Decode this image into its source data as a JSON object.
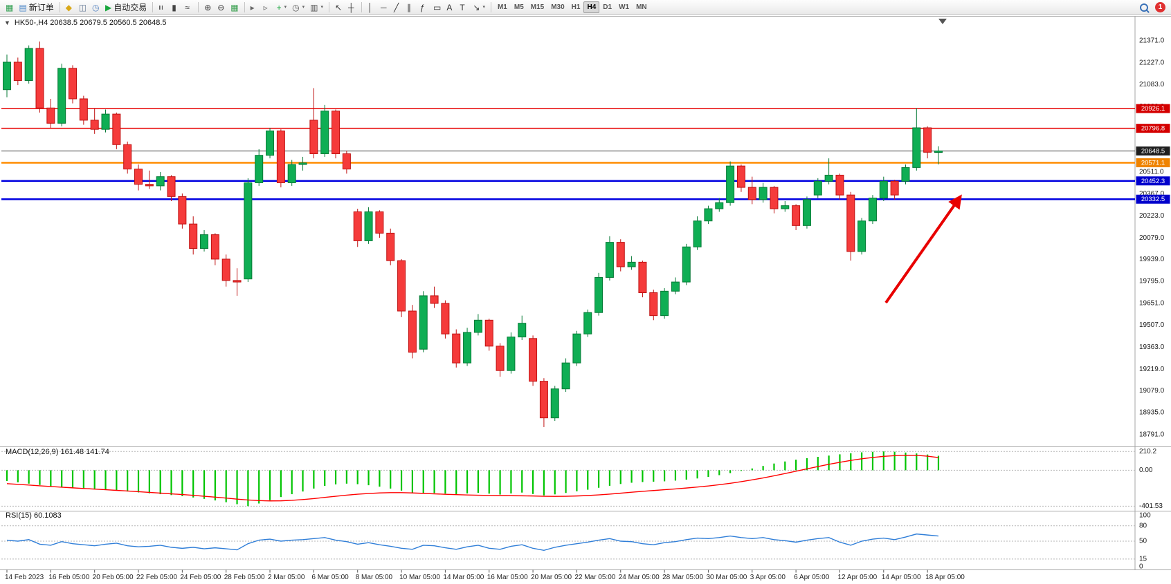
{
  "toolbar": {
    "notification_count": "1",
    "items": [
      {
        "type": "icon",
        "name": "chart-window-icon",
        "glyph": "▦",
        "color": "#2f9e4f"
      },
      {
        "type": "button",
        "name": "new-order-button",
        "label": "新订单",
        "glyph": "▤",
        "color": "#4a86c8"
      },
      {
        "type": "sep"
      },
      {
        "type": "icon",
        "name": "metaeditor-icon",
        "glyph": "◆",
        "color": "#d9a818"
      },
      {
        "type": "icon",
        "name": "publisher-icon",
        "glyph": "◫",
        "color": "#6b7f99"
      },
      {
        "type": "icon",
        "name": "history-center-icon",
        "glyph": "◷",
        "color": "#4f7fbf"
      },
      {
        "type": "button",
        "name": "autotrading-button",
        "label": "自动交易",
        "glyph": "▶",
        "color": "#18a63c"
      },
      {
        "type": "sep"
      },
      {
        "type": "icon",
        "name": "bar-chart-icon",
        "glyph": "≡",
        "color": "#444444",
        "rot": 90
      },
      {
        "type": "icon",
        "name": "candlestick-chart-icon",
        "glyph": "▮",
        "color": "#444444"
      },
      {
        "type": "icon",
        "name": "line-chart-icon",
        "glyph": "≈",
        "color": "#444444"
      },
      {
        "type": "sep"
      },
      {
        "type": "icon",
        "name": "zoom-in-icon",
        "glyph": "⊕",
        "color": "#333333"
      },
      {
        "type": "icon",
        "name": "zoom-out-icon",
        "glyph": "⊖",
        "color": "#333333"
      },
      {
        "type": "icon",
        "name": "tile-windows-icon",
        "glyph": "▦",
        "color": "#3aa050"
      },
      {
        "type": "sep"
      },
      {
        "type": "icon",
        "name": "autoscroll-icon",
        "glyph": "▸",
        "color": "#666666"
      },
      {
        "type": "icon",
        "name": "chart-shift-icon",
        "glyph": "▹",
        "color": "#666666"
      },
      {
        "type": "icon",
        "name": "add-indicator-icon",
        "glyph": "+",
        "color": "#18a63c",
        "caret": true
      },
      {
        "type": "icon",
        "name": "period-icon",
        "glyph": "◷",
        "color": "#555555",
        "caret": true
      },
      {
        "type": "icon",
        "name": "template-icon",
        "glyph": "▥",
        "color": "#555555",
        "caret": true
      },
      {
        "type": "sep"
      },
      {
        "type": "icon",
        "name": "cursor-icon",
        "glyph": "↖",
        "color": "#333333"
      },
      {
        "type": "icon",
        "name": "crosshair-icon",
        "glyph": "┼",
        "color": "#333333"
      },
      {
        "type": "sep"
      },
      {
        "type": "icon",
        "name": "vertical-line-icon",
        "glyph": "│",
        "color": "#333333"
      },
      {
        "type": "icon",
        "name": "horizontal-line-icon",
        "glyph": "─",
        "color": "#333333"
      },
      {
        "type": "icon",
        "name": "trendline-icon",
        "glyph": "╱",
        "color": "#333333"
      },
      {
        "type": "icon",
        "name": "channel-icon",
        "glyph": "∥",
        "color": "#333333"
      },
      {
        "type": "icon",
        "name": "fibonacci-icon",
        "glyph": "ƒ",
        "color": "#333333"
      },
      {
        "type": "icon",
        "name": "shapes-icon",
        "glyph": "▭",
        "color": "#333333"
      },
      {
        "type": "icon",
        "name": "text-icon",
        "glyph": "A",
        "color": "#333333"
      },
      {
        "type": "icon",
        "name": "label-icon",
        "glyph": "T",
        "color": "#333333"
      },
      {
        "type": "icon",
        "name": "arrows-icon",
        "glyph": "↘",
        "color": "#333333",
        "caret": true
      },
      {
        "type": "sep"
      },
      {
        "type": "tf",
        "label": "M1"
      },
      {
        "type": "tf",
        "label": "M5"
      },
      {
        "type": "tf",
        "label": "M15"
      },
      {
        "type": "tf",
        "label": "M30"
      },
      {
        "type": "tf",
        "label": "H1"
      },
      {
        "type": "tf",
        "label": "H4",
        "active": true
      },
      {
        "type": "tf",
        "label": "D1"
      },
      {
        "type": "tf",
        "label": "W1"
      },
      {
        "type": "tf",
        "label": "MN"
      }
    ]
  },
  "chart_data": {
    "type": "candlestick",
    "symbol": "HK50-",
    "timeframe": "H4",
    "header": "HK50-,H4   20638.5 20679.5 20560.5 20648.5",
    "last_bar": {
      "open": 20638.5,
      "high": 20679.5,
      "low": 20560.5,
      "close": 20648.5
    },
    "colors": {
      "up": "#0fae54",
      "up_border": "#067a36",
      "down": "#f53b3b",
      "down_border": "#bf1111",
      "macd_hist": "#00c400",
      "macd_signal": "#ff0000",
      "rsi_line": "#2f7ed8",
      "axis_text": "#1a1a1a"
    },
    "y_range": [
      18740,
      21420
    ],
    "y_ticks": [
      21371.0,
      21227.0,
      21083.0,
      20939.0,
      20795.0,
      20651.0,
      20511.0,
      20367.0,
      20223.0,
      20079.0,
      19939.0,
      19795.0,
      19651.0,
      19507.0,
      19363.0,
      19219.0,
      19079.0,
      18935.0,
      18791.0
    ],
    "hlines": [
      {
        "price": 20926.1,
        "color": "#e60000",
        "badge_color": "#d40000",
        "width": 1.5
      },
      {
        "price": 20796.8,
        "color": "#e60000",
        "badge_color": "#d40000",
        "width": 1.5
      },
      {
        "price": 20648.5,
        "color": "#3c3c3c",
        "badge_color": "#1f1f1f",
        "width": 1,
        "is_current_price": true
      },
      {
        "price": 20571.1,
        "color": "#ff8c00",
        "badge_color": "#ef8300",
        "width": 2.5
      },
      {
        "price": 20452.3,
        "color": "#0000e0",
        "badge_color": "#0000cc",
        "width": 2.5
      },
      {
        "price": 20332.5,
        "color": "#0000e0",
        "badge_color": "#0000cc",
        "width": 2.5
      }
    ],
    "x_label_every": 4,
    "x_labels": [
      "14 Feb 2023",
      "16 Feb 05:00",
      "20 Feb 05:00",
      "22 Feb 05:00",
      "24 Feb 05:00",
      "28 Feb 05:00",
      "2 Mar 05:00",
      "6 Mar 05:00",
      "8 Mar 05:00",
      "10 Mar 05:00",
      "14 Mar 05:00",
      "16 Mar 05:00",
      "20 Mar 05:00",
      "22 Mar 05:00",
      "24 Mar 05:00",
      "28 Mar 05:00",
      "30 Mar 05:00",
      "3 Apr 05:00",
      "6 Apr 05:00",
      "12 Apr 05:00",
      "14 Apr 05:00",
      "18 Apr 05:00"
    ],
    "candles": [
      [
        21050,
        21280,
        21000,
        21230
      ],
      [
        21230,
        21260,
        21080,
        21110
      ],
      [
        21110,
        21340,
        21090,
        21320
      ],
      [
        21320,
        21365,
        20900,
        20930
      ],
      [
        20930,
        20990,
        20800,
        20830
      ],
      [
        20830,
        21220,
        20810,
        21190
      ],
      [
        21190,
        21210,
        20960,
        20990
      ],
      [
        20990,
        21010,
        20820,
        20850
      ],
      [
        20850,
        20930,
        20760,
        20790
      ],
      [
        20790,
        20920,
        20770,
        20890
      ],
      [
        20890,
        20900,
        20660,
        20690
      ],
      [
        20690,
        20710,
        20500,
        20530
      ],
      [
        20530,
        20560,
        20390,
        20430
      ],
      [
        20430,
        20520,
        20400,
        20420
      ],
      [
        20420,
        20510,
        20390,
        20480
      ],
      [
        20480,
        20490,
        20320,
        20350
      ],
      [
        20350,
        20370,
        20140,
        20170
      ],
      [
        20170,
        20220,
        19970,
        20010
      ],
      [
        20010,
        20130,
        19990,
        20100
      ],
      [
        20100,
        20110,
        19900,
        19940
      ],
      [
        19940,
        19970,
        19760,
        19800
      ],
      [
        19800,
        19880,
        19700,
        19790
      ],
      [
        19810,
        20470,
        19790,
        20440
      ],
      [
        20440,
        20660,
        20420,
        20620
      ],
      [
        20620,
        20800,
        20600,
        20780
      ],
      [
        20780,
        20790,
        20410,
        20440
      ],
      [
        20440,
        20590,
        20420,
        20560
      ],
      [
        20560,
        20610,
        20520,
        20570
      ],
      [
        20850,
        21060,
        20600,
        20630
      ],
      [
        20630,
        20950,
        20610,
        20910
      ],
      [
        20910,
        20920,
        20600,
        20630
      ],
      [
        20630,
        20650,
        20500,
        20530
      ],
      [
        20250,
        20270,
        20020,
        20060
      ],
      [
        20060,
        20280,
        20040,
        20250
      ],
      [
        20250,
        20260,
        20080,
        20110
      ],
      [
        20110,
        20140,
        19900,
        19930
      ],
      [
        19930,
        19940,
        19560,
        19600
      ],
      [
        19600,
        19640,
        19290,
        19330
      ],
      [
        19350,
        19730,
        19330,
        19700
      ],
      [
        19700,
        19760,
        19620,
        19650
      ],
      [
        19650,
        19670,
        19420,
        19450
      ],
      [
        19450,
        19480,
        19230,
        19260
      ],
      [
        19260,
        19490,
        19240,
        19460
      ],
      [
        19460,
        19580,
        19440,
        19540
      ],
      [
        19540,
        19550,
        19340,
        19370
      ],
      [
        19370,
        19390,
        19170,
        19210
      ],
      [
        19210,
        19460,
        19190,
        19430
      ],
      [
        19430,
        19570,
        19410,
        19520
      ],
      [
        19420,
        19440,
        19110,
        19140
      ],
      [
        19140,
        19160,
        18840,
        18900
      ],
      [
        18900,
        19110,
        18880,
        19090
      ],
      [
        19090,
        19290,
        19070,
        19260
      ],
      [
        19260,
        19470,
        19240,
        19450
      ],
      [
        19450,
        19610,
        19430,
        19590
      ],
      [
        19590,
        19850,
        19570,
        19820
      ],
      [
        19820,
        20090,
        19800,
        20050
      ],
      [
        20050,
        20070,
        19860,
        19890
      ],
      [
        19890,
        19960,
        19870,
        19920
      ],
      [
        19920,
        19930,
        19690,
        19720
      ],
      [
        19720,
        19740,
        19540,
        19570
      ],
      [
        19570,
        19750,
        19550,
        19730
      ],
      [
        19730,
        19820,
        19710,
        19790
      ],
      [
        19790,
        20040,
        19770,
        20020
      ],
      [
        20020,
        20220,
        20000,
        20190
      ],
      [
        20190,
        20290,
        20170,
        20270
      ],
      [
        20270,
        20340,
        20250,
        20310
      ],
      [
        20310,
        20580,
        20290,
        20550
      ],
      [
        20550,
        20560,
        20380,
        20410
      ],
      [
        20410,
        20480,
        20300,
        20330
      ],
      [
        20330,
        20440,
        20310,
        20410
      ],
      [
        20410,
        20420,
        20240,
        20270
      ],
      [
        20270,
        20320,
        20250,
        20290
      ],
      [
        20290,
        20300,
        20130,
        20160
      ],
      [
        20160,
        20350,
        20140,
        20330
      ],
      [
        20360,
        20470,
        20340,
        20450
      ],
      [
        20450,
        20600,
        20430,
        20490
      ],
      [
        20490,
        20500,
        20330,
        20360
      ],
      [
        20360,
        20380,
        19930,
        19990
      ],
      [
        19990,
        20210,
        19970,
        20190
      ],
      [
        20190,
        20360,
        20170,
        20340
      ],
      [
        20340,
        20480,
        20320,
        20450
      ],
      [
        20450,
        20460,
        20330,
        20360
      ],
      [
        20450,
        20560,
        20430,
        20540
      ],
      [
        20540,
        20930,
        20520,
        20800
      ],
      [
        20800,
        20810,
        20600,
        20640
      ],
      [
        20638.5,
        20679.5,
        20560.5,
        20648.5
      ]
    ],
    "macd": {
      "label": "MACD(12,26,9) 161.48 141.74",
      "scale_labels": [
        "210.2",
        "0.00",
        "-401.53"
      ],
      "scale_values": [
        210.2,
        0,
        -401.53
      ],
      "range": [
        -430,
        235
      ],
      "hist": [
        -120,
        -135,
        -150,
        -165,
        -180,
        -190,
        -200,
        -210,
        -215,
        -220,
        -228,
        -238,
        -248,
        -258,
        -268,
        -278,
        -290,
        -305,
        -320,
        -338,
        -358,
        -380,
        -401.53,
        -372,
        -335,
        -300,
        -268,
        -238,
        -205,
        -175,
        -158,
        -150,
        -156,
        -168,
        -184,
        -205,
        -228,
        -252,
        -262,
        -256,
        -262,
        -270,
        -260,
        -252,
        -262,
        -272,
        -260,
        -250,
        -266,
        -282,
        -270,
        -254,
        -236,
        -218,
        -196,
        -174,
        -154,
        -140,
        -132,
        -128,
        -124,
        -116,
        -105,
        -92,
        -75,
        -55,
        -32,
        -8,
        20,
        48,
        75,
        98,
        118,
        135,
        150,
        164,
        178,
        190,
        200,
        206,
        210.2,
        207,
        198,
        188,
        176,
        161.48
      ],
      "signal": [
        -150,
        -158,
        -166,
        -174,
        -182,
        -190,
        -197,
        -204,
        -211,
        -218,
        -225,
        -232,
        -240,
        -248,
        -256,
        -264,
        -272,
        -281,
        -291,
        -301,
        -312,
        -323,
        -333,
        -340,
        -343,
        -342,
        -337,
        -328,
        -317,
        -304,
        -291,
        -279,
        -268,
        -260,
        -254,
        -251,
        -251,
        -254,
        -259,
        -264,
        -269,
        -273,
        -277,
        -280,
        -282,
        -284,
        -285,
        -286,
        -288,
        -291,
        -292,
        -291,
        -288,
        -283,
        -276,
        -267,
        -257,
        -246,
        -236,
        -227,
        -218,
        -209,
        -199,
        -188,
        -176,
        -162,
        -146,
        -128,
        -108,
        -86,
        -62,
        -37,
        -11,
        15,
        41,
        66,
        89,
        110,
        128,
        143,
        155,
        163,
        168,
        167,
        157,
        141.74
      ]
    },
    "rsi": {
      "label": "RSI(15) 60.1083",
      "levels": [
        100,
        80,
        50,
        15,
        0
      ],
      "dotted_levels": [
        80,
        50,
        15
      ],
      "range": [
        0,
        100
      ],
      "values": [
        52,
        50,
        53,
        44,
        42,
        49,
        45,
        43,
        41,
        44,
        46,
        41,
        39,
        40,
        42,
        38,
        36,
        38,
        35,
        37,
        35,
        33,
        45,
        52,
        54,
        50,
        52,
        53,
        55,
        57,
        52,
        49,
        44,
        47,
        43,
        40,
        36,
        34,
        42,
        41,
        37,
        34,
        39,
        42,
        36,
        34,
        40,
        43,
        36,
        32,
        38,
        42,
        45,
        48,
        52,
        55,
        50,
        49,
        45,
        43,
        47,
        49,
        53,
        56,
        55,
        57,
        60,
        57,
        55,
        57,
        53,
        51,
        48,
        52,
        55,
        57,
        48,
        42,
        50,
        54,
        56,
        53,
        58,
        64,
        62,
        60.1
      ]
    },
    "arrow": {
      "from": [
        1280,
        438
      ],
      "to": [
        1388,
        284
      ],
      "color": "#e80000"
    },
    "shift_marker_x": 1362
  }
}
